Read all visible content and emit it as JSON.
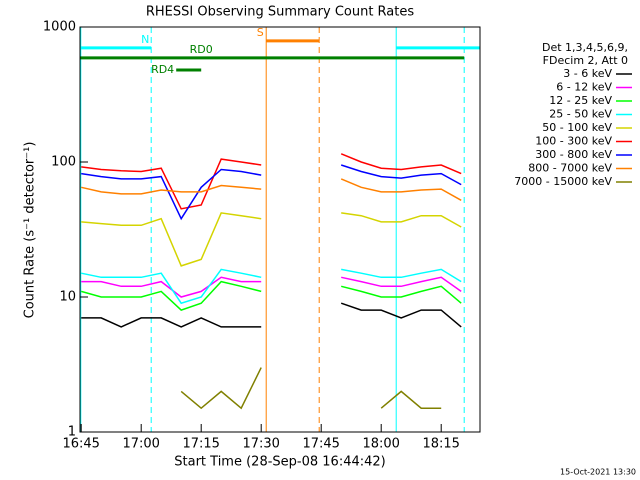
{
  "chart_data": {
    "type": "line",
    "title": "RHESSI Observing Summary Count Rates",
    "x_label": "Start Time (28-Sep-08 16:44:42)",
    "y_label": "Count Rate (s⁻¹ detector⁻¹)",
    "footer": "15-Oct-2021 13:30",
    "legend_header": [
      "Det 1,3,4,5,6,9,",
      "FDecim 2, Att 0"
    ],
    "log_y": true,
    "xlim": [
      1004.7,
      1104.7
    ],
    "ylim": [
      1,
      1000
    ],
    "xticks": [
      {
        "value": 1005,
        "label": "16:45"
      },
      {
        "value": 1020,
        "label": "17:00"
      },
      {
        "value": 1035,
        "label": "17:15"
      },
      {
        "value": 1050,
        "label": "17:30"
      },
      {
        "value": 1065,
        "label": "17:45"
      },
      {
        "value": 1080,
        "label": "18:00"
      },
      {
        "value": 1095,
        "label": "18:15"
      }
    ],
    "yticks": [
      1,
      10,
      100,
      1000
    ],
    "x": [
      1005,
      1010,
      1015,
      1020,
      1025,
      1030,
      1035,
      1040,
      1045,
      1050,
      1055,
      1060,
      1065,
      1070,
      1075,
      1080,
      1085,
      1090,
      1095,
      1100,
      1105
    ],
    "series": [
      {
        "name": "3 - 6 keV",
        "color": "#000000",
        "values": [
          7,
          7,
          6,
          7,
          7,
          6,
          7,
          6,
          6,
          6,
          null,
          null,
          null,
          9,
          8,
          8,
          7,
          8,
          8,
          6,
          null
        ]
      },
      {
        "name": "6 - 12 keV",
        "color": "#ff00ff",
        "values": [
          13,
          13,
          12,
          12,
          13,
          10,
          11,
          14,
          13,
          13,
          null,
          null,
          null,
          14,
          13,
          12,
          12,
          13,
          14,
          11,
          null
        ]
      },
      {
        "name": "12 - 25 keV",
        "color": "#00ff00",
        "values": [
          11,
          10,
          10,
          10,
          11,
          8,
          9,
          13,
          12,
          11,
          null,
          null,
          null,
          12,
          11,
          10,
          10,
          11,
          12,
          9,
          null
        ]
      },
      {
        "name": "25 - 50 keV",
        "color": "#00ffff",
        "values": [
          15,
          14,
          14,
          14,
          15,
          9,
          10,
          16,
          15,
          14,
          null,
          null,
          null,
          16,
          15,
          14,
          14,
          15,
          16,
          13,
          null
        ]
      },
      {
        "name": "50 - 100 keV",
        "color": "#d4d400",
        "values": [
          36,
          35,
          34,
          34,
          38,
          17,
          19,
          42,
          40,
          38,
          null,
          null,
          null,
          42,
          40,
          36,
          36,
          40,
          40,
          33,
          null
        ]
      },
      {
        "name": "100 - 300 keV",
        "color": "#ff0000",
        "values": [
          92,
          88,
          86,
          85,
          90,
          45,
          48,
          105,
          100,
          95,
          null,
          null,
          null,
          115,
          100,
          90,
          88,
          92,
          95,
          82,
          null
        ]
      },
      {
        "name": "300 - 800 keV",
        "color": "#0000ff",
        "values": [
          82,
          78,
          75,
          75,
          78,
          38,
          65,
          88,
          85,
          80,
          null,
          null,
          null,
          95,
          85,
          78,
          76,
          80,
          82,
          68,
          null
        ]
      },
      {
        "name": "800 - 7000 keV",
        "color": "#ff8000",
        "values": [
          65,
          60,
          58,
          58,
          62,
          60,
          60,
          67,
          65,
          63,
          null,
          null,
          null,
          75,
          65,
          60,
          60,
          62,
          63,
          52,
          null
        ]
      },
      {
        "name": "7000 - 15000 keV",
        "color": "#808000",
        "values": [
          null,
          null,
          null,
          null,
          null,
          2,
          1.5,
          2,
          1.5,
          3,
          null,
          null,
          null,
          null,
          null,
          1.5,
          2,
          1.5,
          1.5,
          null,
          null
        ]
      }
    ],
    "flags": [
      {
        "label": "N",
        "color": "#00ffff",
        "y": 700,
        "intervals": [
          [
            1004.7,
            1022.5
          ],
          [
            1083.75,
            1104.7
          ]
        ]
      },
      {
        "label": "RD0",
        "color": "#008000",
        "y": 590,
        "intervals": [
          [
            1004.7,
            1100.75
          ]
        ]
      },
      {
        "label": "RD4",
        "color": "#008000",
        "y": 480,
        "intervals": [
          [
            1028.75,
            1035
          ]
        ]
      },
      {
        "label": "S",
        "color": "#ff8000",
        "y": 790,
        "intervals": [
          [
            1051.25,
            1064.5
          ]
        ]
      }
    ],
    "vlines": [
      {
        "x": 1004.9,
        "color": "#00ffff",
        "dashed": false
      },
      {
        "x": 1022.5,
        "color": "#00ffff",
        "dashed": true
      },
      {
        "x": 1083.75,
        "color": "#00ffff",
        "dashed": false
      },
      {
        "x": 1100.75,
        "color": "#00ffff",
        "dashed": true
      },
      {
        "x": 1051.25,
        "color": "#ff8000",
        "dashed": false
      },
      {
        "x": 1064.5,
        "color": "#ff8000",
        "dashed": true
      }
    ]
  }
}
